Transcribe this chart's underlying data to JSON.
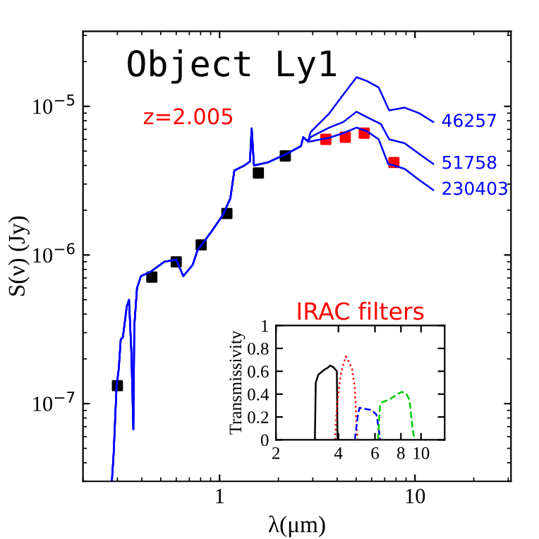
{
  "chart_data": [
    {
      "type": "line",
      "title": "Object Ly1",
      "xlabel": "λ(μm)",
      "ylabel": "S(ν) (Jy)",
      "annotations": [
        "z=2.005"
      ],
      "log": "xy",
      "xlim": [
        0.2,
        31
      ],
      "ylim": [
        3e-08,
        3.2e-05
      ],
      "xticks": [
        1,
        10
      ],
      "yticks": [
        {
          "value": 1e-07,
          "label": "10$^{−7}$"
        },
        {
          "value": 1e-06,
          "label": "10$^{−6}$"
        },
        {
          "value": 1e-05,
          "label": "10$^{−5}$"
        }
      ],
      "series": [
        {
          "name": "46257",
          "color": "#0000ff",
          "x": [
            0.281,
            0.287,
            0.297,
            0.305,
            0.312,
            0.32,
            0.335,
            0.344,
            0.354,
            0.362,
            0.366,
            0.378,
            0.396,
            0.443,
            0.522,
            0.6,
            0.652,
            0.729,
            0.77,
            0.91,
            1.04,
            1.135,
            1.19,
            1.34,
            1.43,
            1.46,
            1.5,
            1.77,
            2.21,
            2.61,
            2.68,
            2.84,
            2.92,
            3.64,
            4.3,
            5.02,
            5.68,
            6.52,
            7.38,
            8.85,
            10.5,
            12.4
          ],
          "values": [
            3e-08,
            4.6e-08,
            1.3e-07,
            1.73e-07,
            2.7e-07,
            2.8e-07,
            4.5e-07,
            5e-07,
            2.15e-07,
            6.7e-08,
            3.3e-07,
            6e-07,
            7.2e-07,
            7.7e-07,
            9e-07,
            9.3e-07,
            7.2e-07,
            8.6e-07,
            1.07e-06,
            1.44e-06,
            1.86e-06,
            2.4e-06,
            3.7e-06,
            4e-06,
            4.25e-06,
            7.1e-06,
            4e-06,
            4.2e-06,
            4.8e-06,
            5.4e-06,
            6.2e-06,
            5.8e-06,
            6.7e-06,
            8.96e-06,
            1.2e-05,
            1.57e-05,
            1.48e-05,
            1.34e-05,
            9.4e-06,
            9.8e-06,
            9e-06,
            7.85e-06
          ]
        },
        {
          "name": "51758",
          "color": "#0000ff",
          "x": [
            0.281,
            0.287,
            0.297,
            0.305,
            0.312,
            0.32,
            0.335,
            0.344,
            0.354,
            0.362,
            0.366,
            0.378,
            0.396,
            0.443,
            0.522,
            0.6,
            0.652,
            0.729,
            0.77,
            0.91,
            1.04,
            1.135,
            1.19,
            1.34,
            1.43,
            1.46,
            1.5,
            1.77,
            2.21,
            2.61,
            2.68,
            2.84,
            2.92,
            3.64,
            4.3,
            5.02,
            5.68,
            6.7,
            7.38,
            8.85,
            10.5,
            12.4
          ],
          "values": [
            3e-08,
            4.6e-08,
            1.3e-07,
            1.73e-07,
            2.7e-07,
            2.8e-07,
            4.5e-07,
            5e-07,
            2.15e-07,
            6.7e-08,
            3.3e-07,
            6e-07,
            7.2e-07,
            7.7e-07,
            9e-07,
            9.3e-07,
            7.2e-07,
            8.6e-07,
            1.07e-06,
            1.44e-06,
            1.86e-06,
            2.4e-06,
            3.7e-06,
            4e-06,
            4.25e-06,
            7.1e-06,
            4e-06,
            4.2e-06,
            4.8e-06,
            5.4e-06,
            6.2e-06,
            5.8e-06,
            6.2e-06,
            7.2e-06,
            7.85e-06,
            9.2e-06,
            8.45e-06,
            7.6e-06,
            6e-06,
            5.65e-06,
            4.8e-06,
            4.1e-06
          ]
        },
        {
          "name": "230403",
          "color": "#0000ff",
          "x": [
            0.281,
            0.287,
            0.297,
            0.305,
            0.312,
            0.32,
            0.335,
            0.344,
            0.354,
            0.362,
            0.366,
            0.378,
            0.396,
            0.443,
            0.522,
            0.6,
            0.652,
            0.729,
            0.77,
            0.91,
            1.04,
            1.135,
            1.19,
            1.34,
            1.43,
            1.46,
            1.5,
            1.77,
            2.21,
            2.61,
            2.68,
            2.84,
            2.92,
            3.64,
            4.3,
            5.02,
            5.68,
            6.52,
            7.29,
            8.85,
            10.5,
            12.4
          ],
          "values": [
            3e-08,
            4.6e-08,
            1.3e-07,
            1.73e-07,
            2.7e-07,
            2.8e-07,
            4.5e-07,
            5e-07,
            2.15e-07,
            6.7e-08,
            3.3e-07,
            6e-07,
            7.2e-07,
            7.7e-07,
            9e-07,
            9.3e-07,
            7.2e-07,
            8.6e-07,
            1.07e-06,
            1.44e-06,
            1.86e-06,
            2.4e-06,
            3.7e-06,
            4e-06,
            4.25e-06,
            7.1e-06,
            4e-06,
            4.2e-06,
            4.8e-06,
            5.4e-06,
            6.2e-06,
            5.8e-06,
            5.8e-06,
            6.15e-06,
            6.6e-06,
            7.2e-06,
            6.8e-06,
            6e-06,
            4.1e-06,
            3.8e-06,
            3.2e-06,
            2.74e-06
          ]
        },
        {
          "type": "scatter",
          "marker": "square",
          "color": "#000000",
          "x": [
            0.3,
            0.45,
            0.6,
            0.805,
            1.09,
            1.58,
            2.17
          ],
          "values": [
            1.32e-07,
            7.1e-07,
            9e-07,
            1.17e-06,
            1.9e-06,
            3.56e-06,
            4.64e-06
          ]
        },
        {
          "type": "scatter",
          "marker": "square",
          "color": "#ff0000",
          "x": [
            3.5,
            4.4,
            5.5,
            7.8
          ],
          "values": [
            6e-06,
            6.2e-06,
            6.6e-06,
            4.19e-06
          ]
        }
      ]
    },
    {
      "type": "line",
      "title": "IRAC filters",
      "ylabel": "Transmissivity",
      "log": "x",
      "xlim": [
        2,
        13
      ],
      "ylim": [
        0,
        1
      ],
      "xticks": [
        2,
        4,
        6,
        8,
        10
      ],
      "yticks": [
        0,
        0.2,
        0.4,
        0.6,
        0.8,
        1
      ],
      "series": [
        {
          "color": "#000000",
          "line_style": "solid",
          "x": [
            3.08,
            3.11,
            3.2,
            3.35,
            3.46,
            3.55,
            3.65,
            3.75,
            3.85,
            3.93,
            3.96
          ],
          "values": [
            0,
            0.5,
            0.57,
            0.6,
            0.62,
            0.63,
            0.65,
            0.64,
            0.62,
            0.6,
            0
          ]
        },
        {
          "color": "#ff0000",
          "line_style": "dotted",
          "x": [
            3.85,
            3.92,
            4.02,
            4.13,
            4.34,
            4.5,
            4.65,
            4.8,
            4.9,
            4.95
          ],
          "values": [
            0,
            0.25,
            0.45,
            0.6,
            0.73,
            0.68,
            0.62,
            0.45,
            0.1,
            0
          ]
        },
        {
          "color": "#0000ff",
          "line_style": "dashed",
          "x": [
            4.8,
            4.95,
            5.05,
            5.4,
            5.8,
            6.1,
            6.25,
            6.35
          ],
          "values": [
            0,
            0.2,
            0.28,
            0.27,
            0.26,
            0.22,
            0.1,
            0
          ]
        },
        {
          "color": "#00cc00",
          "line_style": "dashed",
          "x": [
            6.2,
            6.35,
            6.5,
            7.0,
            7.7,
            8.1,
            8.5,
            8.8,
            9.1,
            9.3
          ],
          "values": [
            0,
            0.3,
            0.33,
            0.35,
            0.4,
            0.42,
            0.4,
            0.35,
            0.1,
            0
          ]
        }
      ]
    }
  ]
}
